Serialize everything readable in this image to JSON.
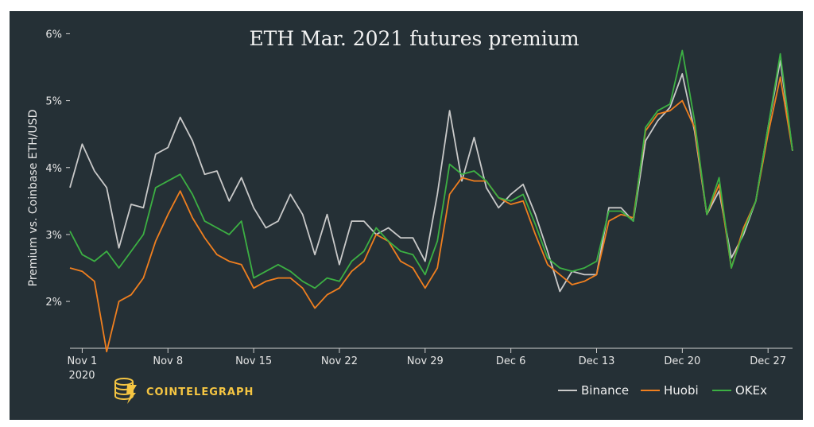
{
  "chart_data": {
    "type": "line",
    "title": "ETH Mar. 2021 futures premium",
    "xlabel": "",
    "ylabel": "Premium vs. Coinbase ETH/USD",
    "ylim": [
      1.3,
      6.1
    ],
    "y_ticks": [
      "2%",
      "3%",
      "4%",
      "5%",
      "6%"
    ],
    "y_tick_values": [
      2,
      3,
      4,
      5,
      6
    ],
    "x_tick_labels": [
      "Nov 1",
      "Nov 8",
      "Nov 15",
      "Nov 22",
      "Nov 29",
      "Dec 6",
      "Dec 13",
      "Dec 20",
      "Dec 27"
    ],
    "x_tick_sublabel": "2020",
    "x_domain": [
      "2020-10-31",
      "2020-12-29"
    ],
    "grid": false,
    "legend_position": "bottom-right",
    "series": [
      {
        "name": "Binance",
        "color": "#c9c9c9",
        "x": [
          "2020-10-31",
          "2020-11-01",
          "2020-11-02",
          "2020-11-03",
          "2020-11-04",
          "2020-11-05",
          "2020-11-06",
          "2020-11-07",
          "2020-11-08",
          "2020-11-09",
          "2020-11-10",
          "2020-11-11",
          "2020-11-12",
          "2020-11-13",
          "2020-11-14",
          "2020-11-15",
          "2020-11-16",
          "2020-11-17",
          "2020-11-18",
          "2020-11-19",
          "2020-11-20",
          "2020-11-21",
          "2020-11-22",
          "2020-11-23",
          "2020-11-24",
          "2020-11-25",
          "2020-11-26",
          "2020-11-27",
          "2020-11-28",
          "2020-11-29",
          "2020-11-30",
          "2020-12-01",
          "2020-12-02",
          "2020-12-03",
          "2020-12-04",
          "2020-12-05",
          "2020-12-06",
          "2020-12-07",
          "2020-12-08",
          "2020-12-09",
          "2020-12-10",
          "2020-12-11",
          "2020-12-12",
          "2020-12-13",
          "2020-12-14",
          "2020-12-15",
          "2020-12-16",
          "2020-12-17",
          "2020-12-18",
          "2020-12-19",
          "2020-12-20",
          "2020-12-21",
          "2020-12-22",
          "2020-12-23",
          "2020-12-24",
          "2020-12-25",
          "2020-12-26",
          "2020-12-27",
          "2020-12-28",
          "2020-12-29"
        ],
        "values": [
          3.7,
          4.35,
          3.95,
          3.7,
          2.8,
          3.45,
          3.4,
          4.2,
          4.3,
          4.75,
          4.4,
          3.9,
          3.95,
          3.5,
          3.85,
          3.4,
          3.1,
          3.2,
          3.6,
          3.3,
          2.7,
          3.3,
          2.55,
          3.2,
          3.2,
          3.0,
          3.1,
          2.95,
          2.95,
          2.6,
          3.6,
          4.85,
          3.8,
          4.45,
          3.7,
          3.4,
          3.6,
          3.75,
          3.3,
          2.75,
          2.15,
          2.45,
          2.4,
          2.4,
          3.4,
          3.4,
          3.2,
          4.4,
          4.7,
          4.9,
          5.4,
          4.55,
          3.3,
          3.65,
          2.65,
          3.0,
          3.5,
          4.6,
          5.6,
          4.25
        ]
      },
      {
        "name": "Huobi",
        "color": "#f07f1f",
        "x": [
          "2020-10-31",
          "2020-11-01",
          "2020-11-02",
          "2020-11-03",
          "2020-11-04",
          "2020-11-05",
          "2020-11-06",
          "2020-11-07",
          "2020-11-08",
          "2020-11-09",
          "2020-11-10",
          "2020-11-11",
          "2020-11-12",
          "2020-11-13",
          "2020-11-14",
          "2020-11-15",
          "2020-11-16",
          "2020-11-17",
          "2020-11-18",
          "2020-11-19",
          "2020-11-20",
          "2020-11-21",
          "2020-11-22",
          "2020-11-23",
          "2020-11-24",
          "2020-11-25",
          "2020-11-26",
          "2020-11-27",
          "2020-11-28",
          "2020-11-29",
          "2020-11-30",
          "2020-12-01",
          "2020-12-02",
          "2020-12-03",
          "2020-12-04",
          "2020-12-05",
          "2020-12-06",
          "2020-12-07",
          "2020-12-08",
          "2020-12-09",
          "2020-12-10",
          "2020-12-11",
          "2020-12-12",
          "2020-12-13",
          "2020-12-14",
          "2020-12-15",
          "2020-12-16",
          "2020-12-17",
          "2020-12-18",
          "2020-12-19",
          "2020-12-20",
          "2020-12-21",
          "2020-12-22",
          "2020-12-23",
          "2020-12-24",
          "2020-12-25",
          "2020-12-26",
          "2020-12-27",
          "2020-12-28",
          "2020-12-29"
        ],
        "values": [
          2.5,
          2.45,
          2.3,
          1.25,
          2.0,
          2.1,
          2.35,
          2.9,
          3.3,
          3.65,
          3.25,
          2.95,
          2.7,
          2.6,
          2.55,
          2.2,
          2.3,
          2.35,
          2.35,
          2.2,
          1.9,
          2.1,
          2.2,
          2.45,
          2.6,
          3.0,
          2.9,
          2.6,
          2.5,
          2.2,
          2.5,
          3.6,
          3.85,
          3.8,
          3.8,
          3.55,
          3.45,
          3.5,
          3.0,
          2.55,
          2.4,
          2.25,
          2.3,
          2.4,
          3.2,
          3.3,
          3.25,
          4.55,
          4.8,
          4.85,
          5.0,
          4.6,
          3.3,
          3.75,
          2.5,
          3.1,
          3.5,
          4.5,
          5.35,
          4.25
        ]
      },
      {
        "name": "OKEx",
        "color": "#3cb043",
        "x": [
          "2020-10-31",
          "2020-11-01",
          "2020-11-02",
          "2020-11-03",
          "2020-11-04",
          "2020-11-05",
          "2020-11-06",
          "2020-11-07",
          "2020-11-08",
          "2020-11-09",
          "2020-11-10",
          "2020-11-11",
          "2020-11-12",
          "2020-11-13",
          "2020-11-14",
          "2020-11-15",
          "2020-11-16",
          "2020-11-17",
          "2020-11-18",
          "2020-11-19",
          "2020-11-20",
          "2020-11-21",
          "2020-11-22",
          "2020-11-23",
          "2020-11-24",
          "2020-11-25",
          "2020-11-26",
          "2020-11-27",
          "2020-11-28",
          "2020-11-29",
          "2020-11-30",
          "2020-12-01",
          "2020-12-02",
          "2020-12-03",
          "2020-12-04",
          "2020-12-05",
          "2020-12-06",
          "2020-12-07",
          "2020-12-08",
          "2020-12-09",
          "2020-12-10",
          "2020-12-11",
          "2020-12-12",
          "2020-12-13",
          "2020-12-14",
          "2020-12-15",
          "2020-12-16",
          "2020-12-17",
          "2020-12-18",
          "2020-12-19",
          "2020-12-20",
          "2020-12-21",
          "2020-12-22",
          "2020-12-23",
          "2020-12-24",
          "2020-12-25",
          "2020-12-26",
          "2020-12-27",
          "2020-12-28",
          "2020-12-29"
        ],
        "values": [
          3.05,
          2.7,
          2.6,
          2.75,
          2.5,
          2.75,
          3.0,
          3.7,
          3.8,
          3.9,
          3.6,
          3.2,
          3.1,
          3.0,
          3.2,
          2.35,
          2.45,
          2.55,
          2.45,
          2.3,
          2.2,
          2.35,
          2.3,
          2.6,
          2.75,
          3.1,
          2.9,
          2.75,
          2.7,
          2.4,
          2.9,
          4.05,
          3.9,
          3.95,
          3.8,
          3.55,
          3.5,
          3.6,
          3.15,
          2.65,
          2.5,
          2.45,
          2.5,
          2.6,
          3.35,
          3.35,
          3.2,
          4.6,
          4.85,
          4.95,
          5.75,
          4.7,
          3.3,
          3.85,
          2.5,
          3.05,
          3.5,
          4.6,
          5.7,
          4.25
        ]
      }
    ]
  },
  "legend": {
    "items": [
      {
        "label": "Binance",
        "color": "#c9c9c9"
      },
      {
        "label": "Huobi",
        "color": "#f07f1f"
      },
      {
        "label": "OKEx",
        "color": "#3cb043"
      }
    ]
  },
  "brand": {
    "name": "COINTELEGRAPH",
    "logo_icon": "cointelegraph-logo-icon",
    "color": "#f5c542"
  },
  "colors": {
    "background": "#253036",
    "text": "#e6e6e6"
  }
}
